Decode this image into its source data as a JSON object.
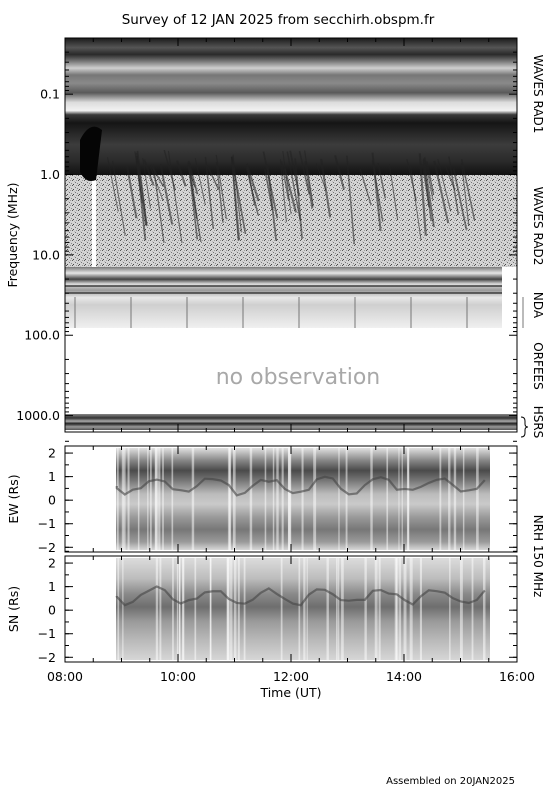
{
  "chart_data": [
    {
      "type": "heatmap",
      "panel": "radio-spectrogram",
      "title": "Survey of 12 JAN 2025 from secchirh.obspm.fr",
      "ylabel": "Frequency (MHz)",
      "y_scale": "log",
      "y_inverted": true,
      "ylim": [
        0.02,
        1600
      ],
      "y_ticks": [
        {
          "value": 0.1,
          "label": "0.1"
        },
        {
          "value": 1,
          "label": "1.0"
        },
        {
          "value": 10,
          "label": "10.0"
        },
        {
          "value": 100,
          "label": "100.0"
        },
        {
          "value": 1000,
          "label": "1000.0"
        }
      ],
      "instruments": [
        {
          "name": "WAVES RAD1",
          "freq_range": [
            0.02,
            1.0
          ],
          "time_range": [
            "08:00",
            "16:00"
          ]
        },
        {
          "name": "WAVES RAD2",
          "freq_range": [
            1.0,
            14
          ],
          "time_range": [
            "08:00",
            "16:00"
          ]
        },
        {
          "name": "NDA",
          "freq_range": [
            14,
            80
          ],
          "time_range": [
            "08:00",
            "15:45"
          ]
        },
        {
          "name": "ORFEES",
          "freq_range": [
            140,
            1000
          ],
          "time_range": [],
          "note": "no observation"
        },
        {
          "name": "HSRS",
          "freq_range": [
            900,
            1600
          ],
          "time_range": [
            "08:00",
            "16:00"
          ]
        }
      ],
      "annotation": "no observation"
    },
    {
      "type": "heatmap",
      "panel": "NRH-EW",
      "ylabel": "EW (Rs)",
      "ylim": [
        -2.2,
        2.3
      ],
      "y_ticks": [
        2,
        1,
        0,
        -1,
        -2
      ],
      "time_range": [
        "08:55",
        "15:30"
      ]
    },
    {
      "type": "heatmap",
      "panel": "NRH-SN",
      "ylabel": "SN (Rs)",
      "ylim": [
        -2.2,
        2.3
      ],
      "y_ticks": [
        2,
        1,
        0,
        -1,
        -2
      ],
      "time_range": [
        "08:55",
        "15:30"
      ]
    }
  ],
  "x_axis": {
    "label": "Time (UT)",
    "ticks": [
      "08:00",
      "10:00",
      "12:00",
      "14:00",
      "16:00"
    ],
    "range": [
      "08:00",
      "16:00"
    ]
  },
  "side_labels": {
    "rad1": "WAVES RAD1",
    "rad2": "WAVES RAD2",
    "nda": "NDA",
    "orfees": "ORFEES",
    "hsrs": "HSRS",
    "nrh": "NRH 150 MHz"
  },
  "footer": "Assembled on 20JAN2025"
}
